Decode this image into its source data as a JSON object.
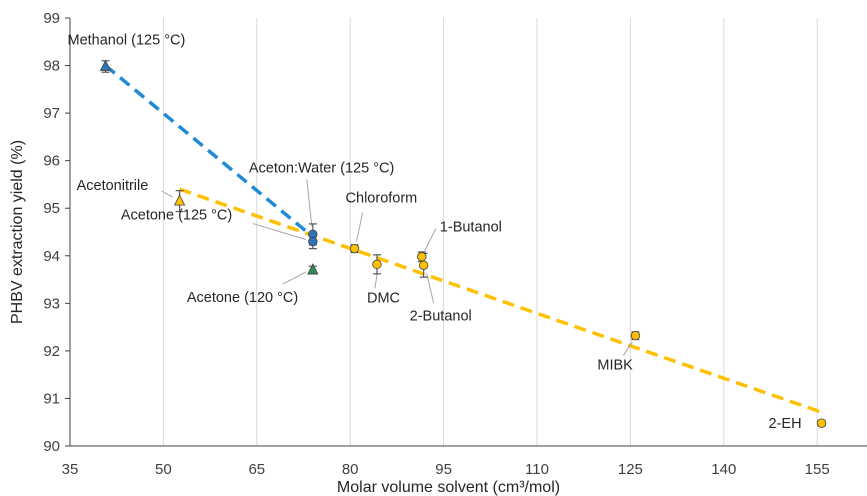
{
  "chart_data": {
    "type": "scatter",
    "xlabel": "Molar volume solvent (cm³/mol)",
    "ylabel": "PHBV extraction yield (%)",
    "xlim": [
      35,
      163
    ],
    "ylim": [
      90,
      99
    ],
    "x_ticks": [
      "35",
      "50",
      "65",
      "80",
      "95",
      "110",
      "125",
      "140",
      "155"
    ],
    "y_ticks": [
      "90",
      "91",
      "92",
      "93",
      "94",
      "95",
      "96",
      "97",
      "98",
      "99"
    ],
    "grid": "vertical",
    "points": [
      {
        "name": "methanol-125",
        "label": "Methanol (125 °C)",
        "x": 40.7,
        "y": 97.98,
        "err": 0.12,
        "marker": "triangle",
        "color": "#2E75B6"
      },
      {
        "name": "acetonitrile",
        "label": "Acetonitrile",
        "x": 52.6,
        "y": 95.15,
        "err": 0.22,
        "marker": "triangle",
        "color": "#FFC000"
      },
      {
        "name": "aceton-water-125",
        "label": "Aceton:Water (125 °C)",
        "x": 74.0,
        "y": 94.45,
        "err": 0.22,
        "marker": "circle",
        "color": "#2E75B6"
      },
      {
        "name": "acetone-125",
        "label": "Acetone (125 °C)",
        "x": 74.0,
        "y": 94.3,
        "err": 0.15,
        "marker": "circle",
        "color": "#2E75B6"
      },
      {
        "name": "acetone-120",
        "label": "Acetone (120 °C)",
        "x": 74.0,
        "y": 93.7,
        "err": 0.08,
        "marker": "triangle",
        "color": "#2E8B57"
      },
      {
        "name": "chloroform",
        "label": "Chloroform",
        "x": 80.7,
        "y": 94.15,
        "err": 0.08,
        "marker": "circle",
        "color": "#FFC000"
      },
      {
        "name": "dmc",
        "label": "DMC",
        "x": 84.3,
        "y": 93.82,
        "err": 0.2,
        "marker": "circle",
        "color": "#FFC000"
      },
      {
        "name": "1-butanol",
        "label": "1-Butanol",
        "x": 91.5,
        "y": 93.98,
        "err": 0.1,
        "marker": "circle",
        "color": "#FFC000"
      },
      {
        "name": "2-butanol",
        "label": "2-Butanol",
        "x": 91.8,
        "y": 93.8,
        "err": 0.25,
        "marker": "circle",
        "color": "#FFC000"
      },
      {
        "name": "mibk",
        "label": "MIBK",
        "x": 125.8,
        "y": 92.32,
        "err": 0.08,
        "marker": "circle",
        "color": "#FFC000"
      },
      {
        "name": "2-eh",
        "label": "2-EH",
        "x": 155.7,
        "y": 90.48,
        "err": 0.06,
        "marker": "circle",
        "color": "#FFC000"
      }
    ],
    "trendlines": [
      {
        "name": "methanol-series",
        "color": "#1F8BD6",
        "x": [
          40.7,
          74.0
        ],
        "y": [
          98.0,
          94.4
        ]
      },
      {
        "name": "solvent-series",
        "color": "#FFC000",
        "x": [
          52.6,
          155.5
        ],
        "y": [
          95.4,
          90.72
        ]
      }
    ]
  }
}
